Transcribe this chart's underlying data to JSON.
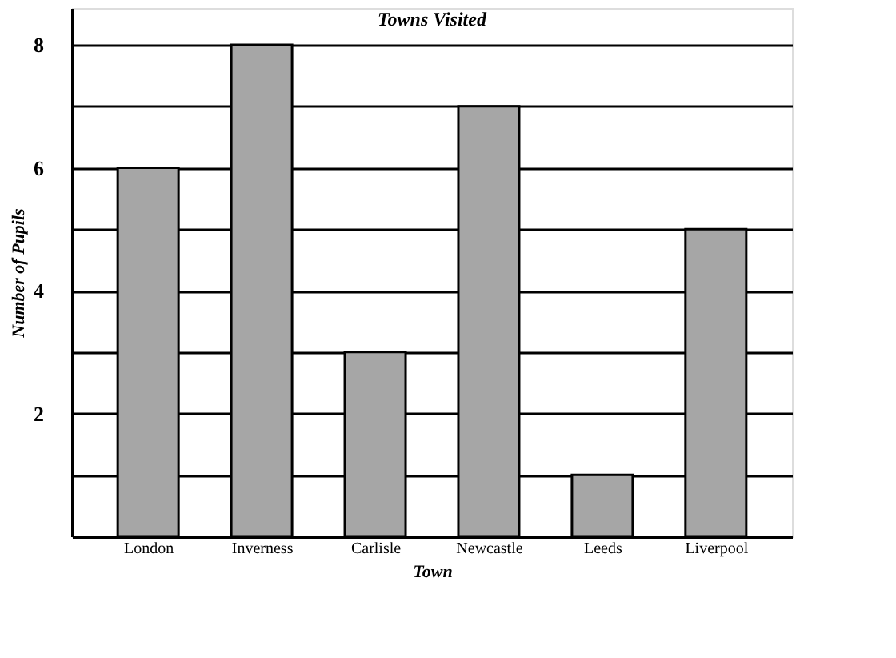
{
  "chart_data": {
    "type": "bar",
    "title": "Towns Visited",
    "xlabel": "Town",
    "ylabel": "Number of Pupils",
    "categories": [
      "London",
      "Inverness",
      "Carlisle",
      "Newcastle",
      "Leeds",
      "Liverpool"
    ],
    "values": [
      6,
      8,
      3,
      7,
      1,
      5
    ],
    "color": "#a6a6a6",
    "ylim": [
      0,
      8.6
    ],
    "yticks": [
      {
        "value": 1,
        "label": null
      },
      2,
      {
        "value": 3,
        "label": null
      },
      4,
      {
        "value": 5,
        "label": null
      },
      6,
      {
        "value": 7,
        "label": null
      },
      8
    ],
    "grid": "y"
  }
}
